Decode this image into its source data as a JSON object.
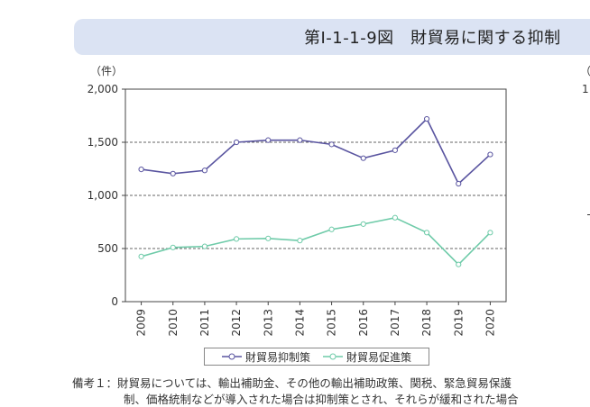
{
  "header": {
    "title": "第Ⅰ-1-1-9図　財貿易に関する抑制"
  },
  "units": {
    "left": "（件）",
    "right_partial": "（%",
    "right_tick_partial": "1"
  },
  "colors": {
    "restrictive": "#5a55a0",
    "promotive": "#6fcba9",
    "title_bg": "#dbe3f3"
  },
  "chart_data": {
    "type": "line",
    "x": [
      "2009",
      "2010",
      "2011",
      "2012",
      "2013",
      "2014",
      "2015",
      "2016",
      "2017",
      "2018",
      "2019",
      "2020"
    ],
    "series": [
      {
        "name": "財貿易抑制策",
        "values": [
          1245,
          1205,
          1235,
          1500,
          1520,
          1520,
          1480,
          1350,
          1425,
          1720,
          1110,
          1385
        ]
      },
      {
        "name": "財貿易促進策",
        "values": [
          425,
          510,
          520,
          590,
          595,
          575,
          680,
          730,
          790,
          650,
          350,
          650
        ]
      }
    ],
    "ylim": [
      0,
      2000
    ],
    "yticks": [
      "0",
      "500",
      "1,000",
      "1,500",
      "2,000"
    ],
    "ytick_values": [
      0,
      500,
      1000,
      1500,
      2000
    ],
    "grid": "dashed horizontal at 500, 1000, 1500",
    "legend": "bottom"
  },
  "notes": {
    "line1": "備考１：財貿易については、輸出補助金、その他の輸出補助政策、関税、緊急貿易保護",
    "line2": "制、価格統制などが導入された場合は抑制策とされ、それらが緩和された場合"
  }
}
